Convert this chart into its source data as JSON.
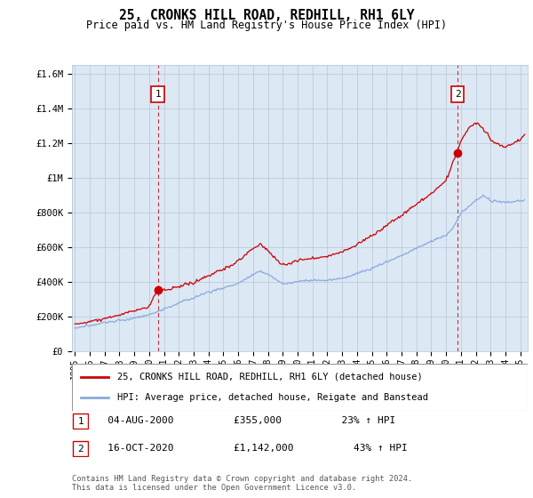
{
  "title": "25, CRONKS HILL ROAD, REDHILL, RH1 6LY",
  "subtitle": "Price paid vs. HM Land Registry's House Price Index (HPI)",
  "ylabel_ticks": [
    "£0",
    "£200K",
    "£400K",
    "£600K",
    "£800K",
    "£1M",
    "£1.2M",
    "£1.4M",
    "£1.6M"
  ],
  "ytick_values": [
    0,
    200000,
    400000,
    600000,
    800000,
    1000000,
    1200000,
    1400000,
    1600000
  ],
  "ylim": [
    0,
    1650000
  ],
  "xlim_start": 1994.8,
  "xlim_end": 2025.5,
  "red_color": "#cc0000",
  "blue_color": "#88aadd",
  "chart_bg": "#dde8f5",
  "marker1_x": 2000.58,
  "marker1_y": 355000,
  "marker2_x": 2020.78,
  "marker2_y": 1142000,
  "vline1_x": 2000.58,
  "vline2_x": 2020.78,
  "legend_label_red": "25, CRONKS HILL ROAD, REDHILL, RH1 6LY (detached house)",
  "legend_label_blue": "HPI: Average price, detached house, Reigate and Banstead",
  "table_rows": [
    {
      "num": "1",
      "date": "04-AUG-2000",
      "price": "£355,000",
      "hpi": "23% ↑ HPI"
    },
    {
      "num": "2",
      "date": "16-OCT-2020",
      "price": "£1,142,000",
      "hpi": "43% ↑ HPI"
    }
  ],
  "footnote": "Contains HM Land Registry data © Crown copyright and database right 2024.\nThis data is licensed under the Open Government Licence v3.0.",
  "background_color": "#ffffff",
  "grid_color": "#bbccdd"
}
